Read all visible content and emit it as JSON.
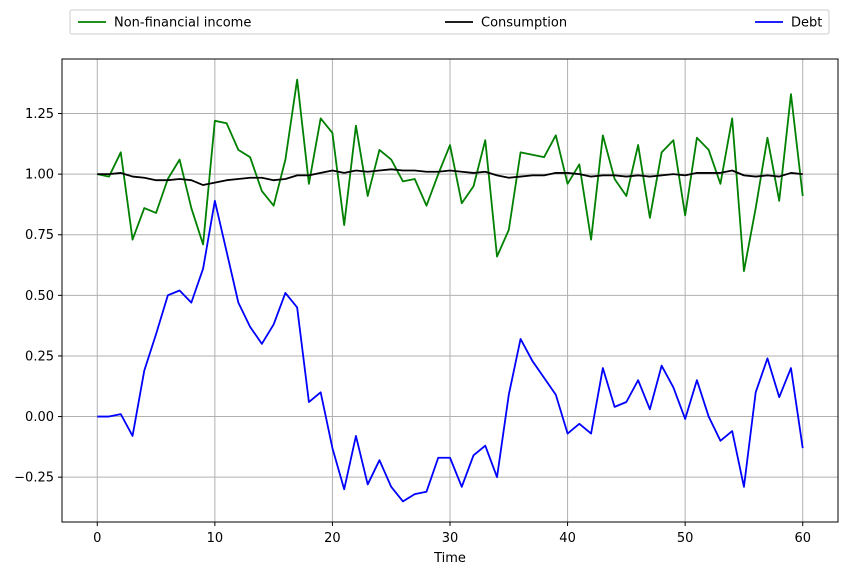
{
  "chart_data": {
    "type": "line",
    "title": "",
    "xlabel": "Time",
    "ylabel": "",
    "xlim": [
      -3,
      63
    ],
    "ylim": [
      -0.435,
      1.475
    ],
    "xticks": [
      0,
      10,
      20,
      30,
      40,
      50,
      60
    ],
    "yticks": [
      -0.25,
      0.0,
      0.25,
      0.5,
      0.75,
      1.0,
      1.25
    ],
    "xtick_labels": [
      "0",
      "10",
      "20",
      "30",
      "40",
      "50",
      "60"
    ],
    "ytick_labels": [
      "−0.25",
      "0.00",
      "0.25",
      "0.50",
      "0.75",
      "1.00",
      "1.25"
    ],
    "grid": true,
    "legend_placement": "top, above plot (3 columns)",
    "x": [
      0,
      1,
      2,
      3,
      4,
      5,
      6,
      7,
      8,
      9,
      10,
      11,
      12,
      13,
      14,
      15,
      16,
      17,
      18,
      19,
      20,
      21,
      22,
      23,
      24,
      25,
      26,
      27,
      28,
      29,
      30,
      31,
      32,
      33,
      34,
      35,
      36,
      37,
      38,
      39,
      40,
      41,
      42,
      43,
      44,
      45,
      46,
      47,
      48,
      49,
      50,
      51,
      52,
      53,
      54,
      55,
      56,
      57,
      58,
      59,
      60
    ],
    "series": [
      {
        "name": "Non-financial income",
        "color": "#008000",
        "values": [
          1.0,
          0.99,
          1.09,
          0.73,
          0.86,
          0.84,
          0.98,
          1.06,
          0.86,
          0.71,
          1.22,
          1.21,
          1.1,
          1.07,
          0.93,
          0.87,
          1.06,
          1.39,
          0.96,
          1.23,
          1.17,
          0.79,
          1.2,
          0.91,
          1.1,
          1.06,
          0.97,
          0.98,
          0.87,
          1.0,
          1.12,
          0.88,
          0.95,
          1.14,
          0.66,
          0.77,
          1.09,
          1.08,
          1.07,
          1.16,
          0.96,
          1.04,
          0.73,
          1.16,
          0.98,
          0.91,
          1.12,
          0.82,
          1.09,
          1.14,
          0.83,
          1.15,
          1.1,
          0.96,
          1.23,
          0.6,
          0.86,
          1.15,
          0.89,
          1.33,
          0.91
        ]
      },
      {
        "name": "Consumption",
        "color": "#000000",
        "values": [
          1.0,
          1.0,
          1.005,
          0.99,
          0.985,
          0.975,
          0.975,
          0.98,
          0.975,
          0.955,
          0.965,
          0.975,
          0.98,
          0.985,
          0.985,
          0.975,
          0.98,
          0.995,
          0.995,
          1.005,
          1.015,
          1.005,
          1.015,
          1.01,
          1.015,
          1.02,
          1.015,
          1.015,
          1.01,
          1.01,
          1.015,
          1.01,
          1.005,
          1.01,
          0.995,
          0.985,
          0.99,
          0.995,
          0.995,
          1.005,
          1.005,
          1.0,
          0.99,
          0.995,
          0.995,
          0.99,
          0.995,
          0.99,
          0.995,
          1.0,
          0.995,
          1.005,
          1.005,
          1.005,
          1.015,
          0.995,
          0.99,
          0.995,
          0.99,
          1.005,
          1.0
        ]
      },
      {
        "name": "Debt",
        "color": "#0000ff",
        "values": [
          0.0,
          0.0,
          0.01,
          -0.08,
          0.19,
          0.34,
          0.5,
          0.52,
          0.47,
          0.61,
          0.89,
          0.68,
          0.47,
          0.37,
          0.3,
          0.38,
          0.51,
          0.45,
          0.06,
          0.1,
          -0.13,
          -0.3,
          -0.08,
          -0.28,
          -0.18,
          -0.29,
          -0.35,
          -0.32,
          -0.31,
          -0.17,
          -0.17,
          -0.29,
          -0.16,
          -0.12,
          -0.25,
          0.09,
          0.32,
          0.23,
          0.16,
          0.09,
          -0.07,
          -0.03,
          -0.07,
          0.2,
          0.04,
          0.06,
          0.15,
          0.03,
          0.21,
          0.12,
          -0.01,
          0.15,
          0.0,
          -0.1,
          -0.06,
          -0.29,
          0.1,
          0.24,
          0.08,
          0.2,
          -0.13
        ]
      }
    ]
  }
}
